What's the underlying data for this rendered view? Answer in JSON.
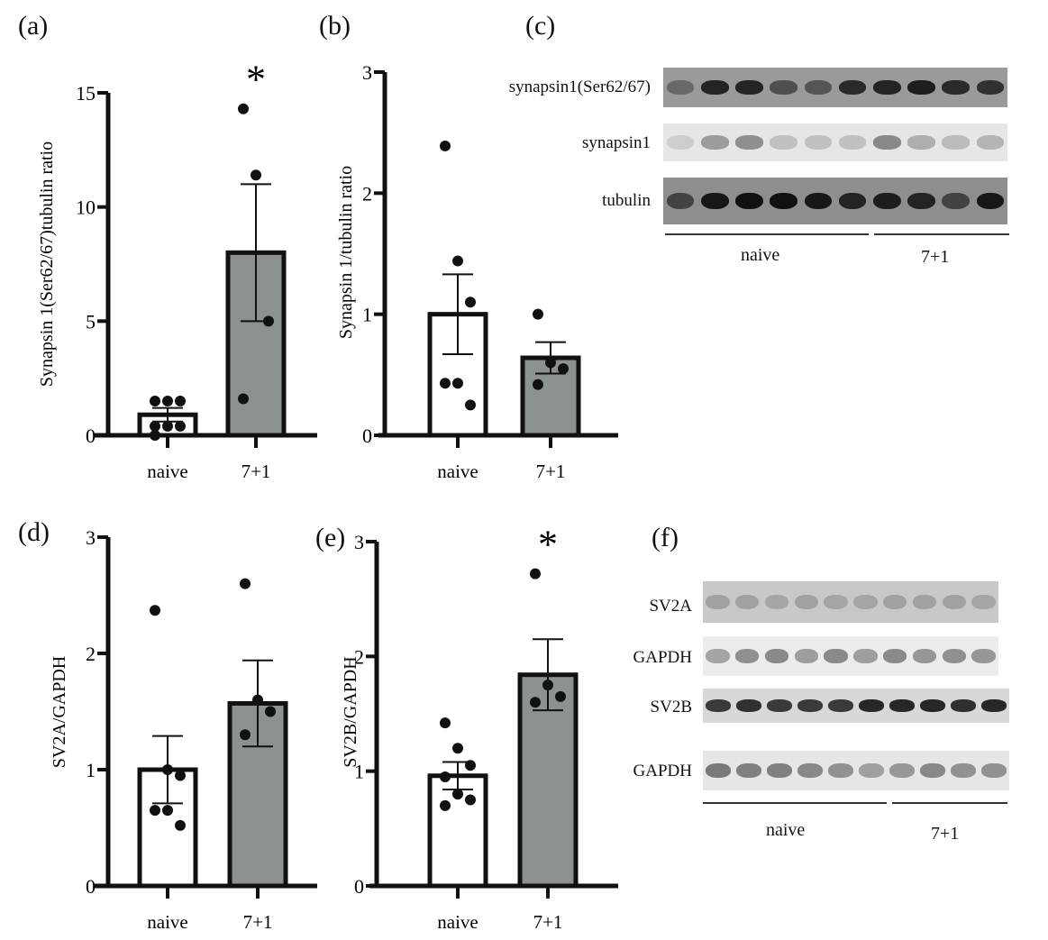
{
  "panels": [
    {
      "id": "a",
      "label": "(a)",
      "ylabel": "Synapsin 1(Ser62/67)tubulin ratio",
      "ylim": [
        0,
        15
      ],
      "yticks": [
        0,
        5,
        10,
        15
      ],
      "categories": [
        "naive",
        "7+1"
      ],
      "means": [
        0.9,
        8.0
      ],
      "sem": [
        0.3,
        3.0
      ],
      "points": [
        [
          1.5,
          1.5,
          1.5,
          0.4,
          0.4,
          0.4,
          0.0
        ],
        [
          14.3,
          11.4,
          5.0,
          1.6
        ]
      ],
      "significance": [
        "",
        "*"
      ]
    },
    {
      "id": "b",
      "label": "(b)",
      "ylabel": "Synapsin 1/tubulin ratio",
      "ylim": [
        0,
        3
      ],
      "yticks": [
        0,
        1,
        2,
        3
      ],
      "categories": [
        "naive",
        "7+1"
      ],
      "means": [
        1.0,
        0.64
      ],
      "sem": [
        0.33,
        0.13
      ],
      "points": [
        [
          2.39,
          1.44,
          1.1,
          0.43,
          0.43,
          0.25
        ],
        [
          1.0,
          0.6,
          0.55,
          0.42
        ]
      ],
      "significance": [
        "",
        ""
      ]
    },
    {
      "id": "d",
      "label": "(d)",
      "ylabel": "SV2A/GAPDH",
      "ylim": [
        0,
        3
      ],
      "yticks": [
        0,
        1,
        2,
        3
      ],
      "categories": [
        "naive",
        "7+1"
      ],
      "means": [
        1.0,
        1.57
      ],
      "sem": [
        0.29,
        0.37
      ],
      "points": [
        [
          2.37,
          1.0,
          0.95,
          0.65,
          0.65,
          0.52
        ],
        [
          2.6,
          1.6,
          1.5,
          1.3
        ]
      ],
      "significance": [
        "",
        ""
      ]
    },
    {
      "id": "e",
      "label": "(e)",
      "ylabel": "SV2B/GAPDH",
      "ylim": [
        0,
        3
      ],
      "yticks": [
        0,
        1,
        2,
        3
      ],
      "categories": [
        "naive",
        "7+1"
      ],
      "means": [
        0.96,
        1.84
      ],
      "sem": [
        0.12,
        0.31
      ],
      "points": [
        [
          1.42,
          1.2,
          1.05,
          0.95,
          0.8,
          0.75,
          0.7
        ],
        [
          2.72,
          1.75,
          1.65,
          1.6
        ]
      ],
      "significance": [
        "",
        "*"
      ]
    }
  ],
  "chart_data": [
    {
      "type": "bar",
      "panel": "(a)",
      "categories": [
        "naive",
        "7+1"
      ],
      "values": [
        0.9,
        8.0
      ],
      "ylabel": "Synapsin 1(Ser62/67)tubulin ratio",
      "ylim": [
        0,
        15
      ]
    },
    {
      "type": "bar",
      "panel": "(b)",
      "categories": [
        "naive",
        "7+1"
      ],
      "values": [
        1.0,
        0.64
      ],
      "ylabel": "Synapsin 1/tubulin ratio",
      "ylim": [
        0,
        3
      ]
    },
    {
      "type": "bar",
      "panel": "(d)",
      "categories": [
        "naive",
        "7+1"
      ],
      "values": [
        1.0,
        1.57
      ],
      "ylabel": "SV2A/GAPDH",
      "ylim": [
        0,
        3
      ]
    },
    {
      "type": "bar",
      "panel": "(e)",
      "categories": [
        "naive",
        "7+1"
      ],
      "values": [
        0.96,
        1.84
      ],
      "ylabel": "SV2B/GAPDH",
      "ylim": [
        0,
        3
      ]
    }
  ],
  "blots": {
    "c": {
      "label": "(c)",
      "rows": [
        "synapsin1(Ser62/67)",
        "synapsin1",
        "tubulin"
      ],
      "groups": [
        "naive",
        "7+1"
      ]
    },
    "f": {
      "label": "(f)",
      "rows": [
        "SV2A",
        "GAPDH",
        "SV2B",
        "GAPDH"
      ],
      "groups": [
        "naive",
        "7+1"
      ]
    }
  },
  "colors": {
    "naive_bar": "#ffffff",
    "treated_bar": "#8c9191",
    "axis": "#111111"
  }
}
